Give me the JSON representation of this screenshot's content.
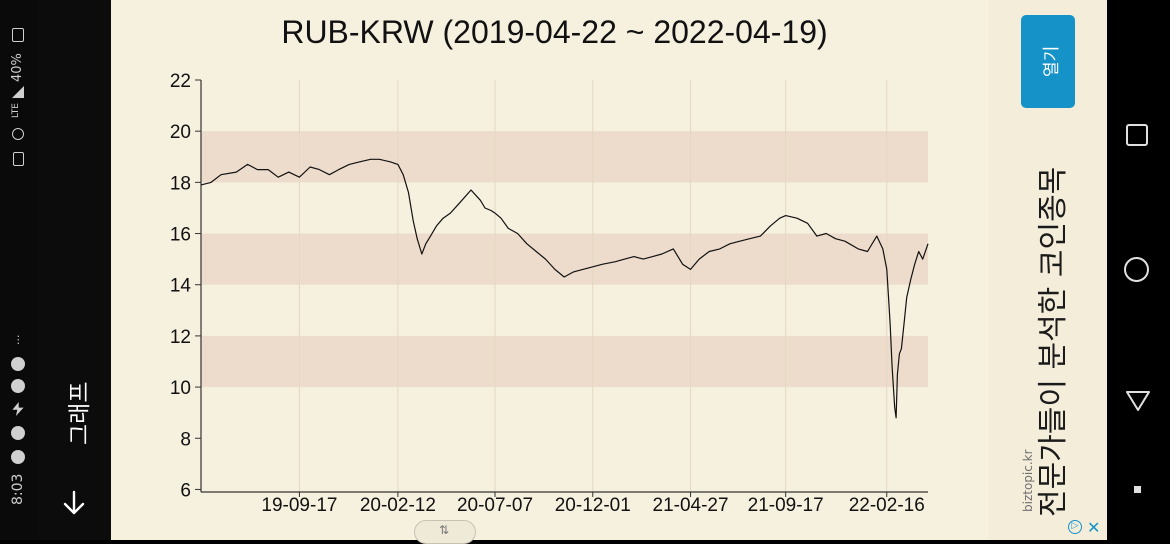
{
  "status": {
    "time": "8:03",
    "battery": "40%",
    "network": "LTE",
    "more": "···"
  },
  "app": {
    "tab_label": "그래프",
    "back_icon": "arrow-down-icon"
  },
  "chart_data": {
    "type": "line",
    "title": "RUB-KRW (2019-04-22 ~ 2022-04-19)",
    "xlabel": "",
    "ylabel": "",
    "x_ticks": [
      "19-09-17",
      "20-02-12",
      "20-07-07",
      "20-12-01",
      "21-04-27",
      "21-09-17",
      "22-02-16"
    ],
    "y_ticks": [
      6,
      8,
      10,
      12,
      14,
      16,
      18,
      20,
      22
    ],
    "ylim": [
      5.9,
      22
    ],
    "xlim": [
      "2019-04-22",
      "2022-04-19"
    ],
    "bands": [
      [
        10,
        12
      ],
      [
        14,
        16
      ],
      [
        18,
        20
      ]
    ],
    "grid": "vertical",
    "series": [
      {
        "color": "#111111",
        "x": [
          "2019-04-22",
          "2019-05-07",
          "2019-05-22",
          "2019-06-14",
          "2019-07-01",
          "2019-07-16",
          "2019-08-01",
          "2019-08-16",
          "2019-09-01",
          "2019-09-17",
          "2019-10-03",
          "2019-10-17",
          "2019-11-01",
          "2019-11-15",
          "2019-12-01",
          "2019-12-16",
          "2020-01-02",
          "2020-01-15",
          "2020-02-01",
          "2020-02-12",
          "2020-02-20",
          "2020-02-28",
          "2020-03-06",
          "2020-03-12",
          "2020-03-19",
          "2020-03-25",
          "2020-04-01",
          "2020-04-10",
          "2020-04-20",
          "2020-05-01",
          "2020-05-15",
          "2020-06-01",
          "2020-06-08",
          "2020-06-15",
          "2020-06-22",
          "2020-07-01",
          "2020-07-07",
          "2020-07-16",
          "2020-07-27",
          "2020-08-10",
          "2020-08-24",
          "2020-09-07",
          "2020-09-21",
          "2020-10-05",
          "2020-10-19",
          "2020-11-02",
          "2020-11-16",
          "2020-12-01",
          "2020-12-16",
          "2021-01-04",
          "2021-01-18",
          "2021-02-01",
          "2021-02-15",
          "2021-03-01",
          "2021-03-15",
          "2021-04-01",
          "2021-04-15",
          "2021-04-27",
          "2021-05-10",
          "2021-05-25",
          "2021-06-10",
          "2021-06-25",
          "2021-07-10",
          "2021-07-25",
          "2021-08-10",
          "2021-08-25",
          "2021-09-08",
          "2021-09-17",
          "2021-10-04",
          "2021-10-20",
          "2021-11-03",
          "2021-11-17",
          "2021-12-01",
          "2021-12-15",
          "2022-01-04",
          "2022-01-18",
          "2022-02-01",
          "2022-02-10",
          "2022-02-16",
          "2022-02-21",
          "2022-02-24",
          "2022-02-28",
          "2022-03-02",
          "2022-03-04",
          "2022-03-07",
          "2022-03-10",
          "2022-03-14",
          "2022-03-18",
          "2022-03-24",
          "2022-03-30",
          "2022-04-05",
          "2022-04-11",
          "2022-04-19"
        ],
        "values": [
          17.9,
          18.0,
          18.3,
          18.4,
          18.7,
          18.5,
          18.5,
          18.2,
          18.4,
          18.2,
          18.6,
          18.5,
          18.3,
          18.5,
          18.7,
          18.8,
          18.9,
          18.9,
          18.8,
          18.7,
          18.3,
          17.6,
          16.5,
          15.8,
          15.2,
          15.6,
          15.9,
          16.3,
          16.6,
          16.8,
          17.2,
          17.7,
          17.5,
          17.3,
          17.0,
          16.9,
          16.8,
          16.6,
          16.2,
          16.0,
          15.6,
          15.3,
          15.0,
          14.6,
          14.3,
          14.5,
          14.6,
          14.7,
          14.8,
          14.9,
          15.0,
          15.1,
          15.0,
          15.1,
          15.2,
          15.4,
          14.8,
          14.6,
          15.0,
          15.3,
          15.4,
          15.6,
          15.7,
          15.8,
          15.9,
          16.3,
          16.6,
          16.7,
          16.6,
          16.4,
          15.9,
          16.0,
          15.8,
          15.7,
          15.4,
          15.3,
          15.9,
          15.4,
          14.6,
          12.5,
          10.8,
          9.2,
          8.8,
          10.5,
          11.3,
          11.5,
          12.5,
          13.5,
          14.2,
          14.8,
          15.3,
          15.0,
          15.6
        ]
      }
    ]
  },
  "ad": {
    "open_label": "열기",
    "headline": "전문가들이 분석한 코인종목",
    "domain": "biztopic.kr",
    "close_glyph": "✕"
  }
}
